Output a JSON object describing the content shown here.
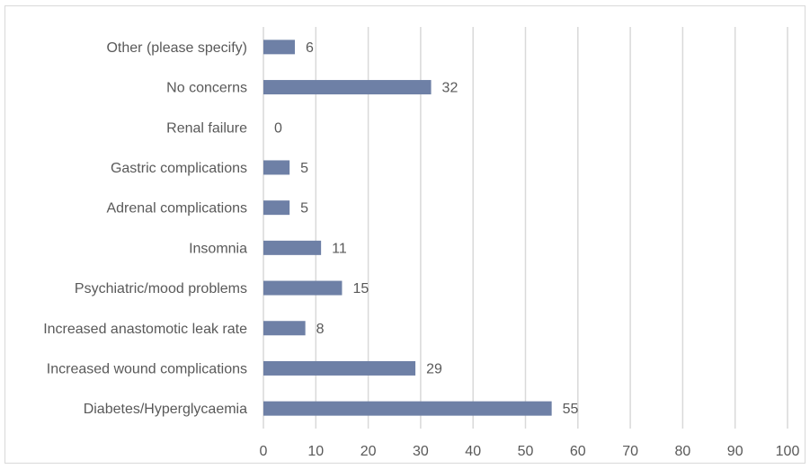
{
  "chart_data": {
    "type": "bar",
    "orientation": "horizontal",
    "categories": [
      "Diabetes/Hyperglycaemia",
      "Increased wound complications",
      "Increased anastomotic leak rate",
      "Psychiatric/mood problems",
      "Insomnia",
      "Adrenal complications",
      "Gastric complications",
      "Renal failure",
      "No concerns",
      "Other (please specify)"
    ],
    "values": [
      55,
      29,
      8,
      15,
      11,
      5,
      5,
      0,
      32,
      6
    ],
    "xlim": [
      0,
      100
    ],
    "xticks": [
      0,
      10,
      20,
      30,
      40,
      50,
      60,
      70,
      80,
      90,
      100
    ],
    "grid": true,
    "data_labels": true,
    "colors": {
      "bar": "#6e80a6",
      "grid": "#d9d9d9",
      "text": "#595959"
    }
  }
}
